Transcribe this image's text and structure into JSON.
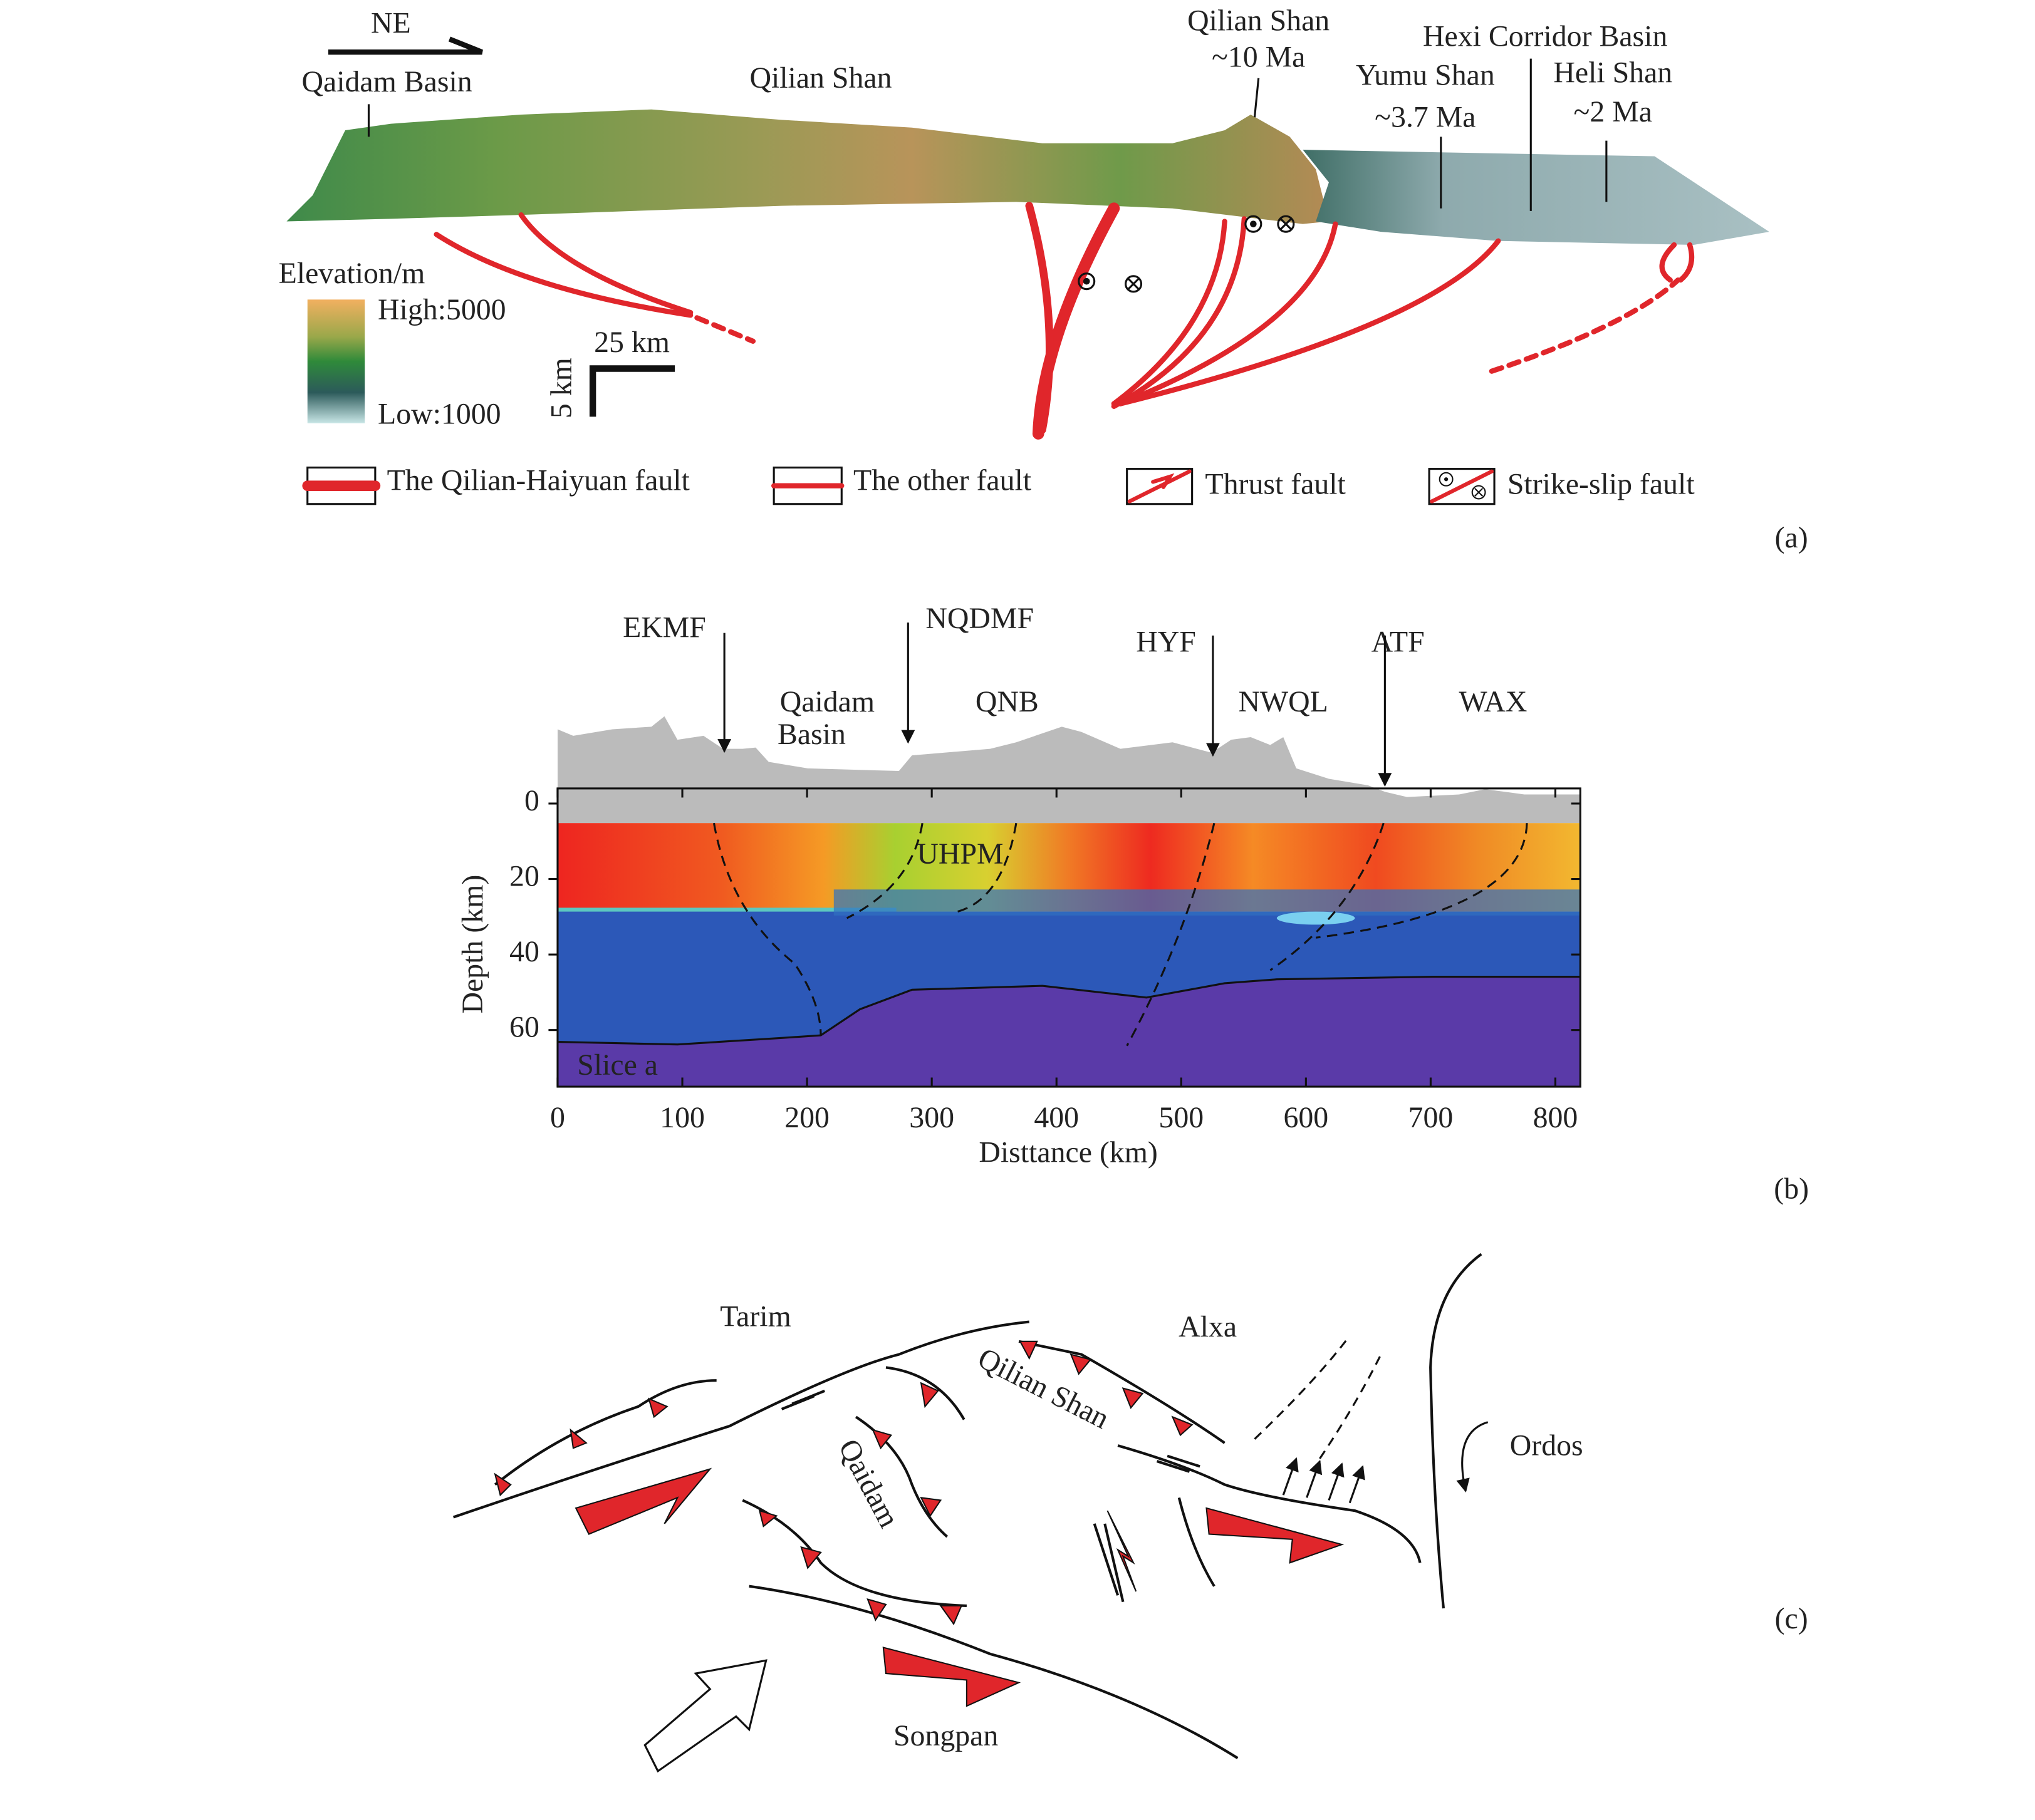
{
  "panel_a": {
    "direction": "NE",
    "places": [
      "Qaidam Basin",
      "Qilian Shan",
      "Qilian Shan",
      "~10 Ma",
      "Hexi Corridor Basin",
      "Yumu Shan",
      "~3.7 Ma",
      "Heli Shan",
      "~2 Ma"
    ],
    "legend_title": "Elevation/m",
    "legend_high": "High:5000",
    "legend_low": "Low:1000",
    "scale_horizontal": "25 km",
    "scale_vertical": "5 km",
    "key": [
      "The Qilian-Haiyuan fault",
      "The other fault",
      "Thrust fault",
      "Strike-slip fault"
    ],
    "caption": "(a)"
  },
  "panel_b": {
    "faults": [
      "EKMF",
      "NQDMF",
      "HYF",
      "ATF"
    ],
    "regions": [
      "Qaidam",
      "Basin",
      "QNB",
      "NWQL",
      "WAX",
      "UHPM",
      "Slice a"
    ],
    "x_label": "Disttance (km)",
    "y_label": "Depth (km)",
    "xlim": [
      0,
      820
    ],
    "ylim": [
      -4,
      75
    ],
    "xticks": [
      0,
      100,
      200,
      300,
      400,
      500,
      600,
      700,
      800
    ],
    "yticks": [
      0,
      20,
      40,
      60
    ],
    "caption": "(b)"
  },
  "panel_c": {
    "labels": [
      "Tarim",
      "Alxa",
      "Qilian Shan",
      "Qaidam",
      "Ordos",
      "Songpan"
    ],
    "caption": "(c)"
  }
}
